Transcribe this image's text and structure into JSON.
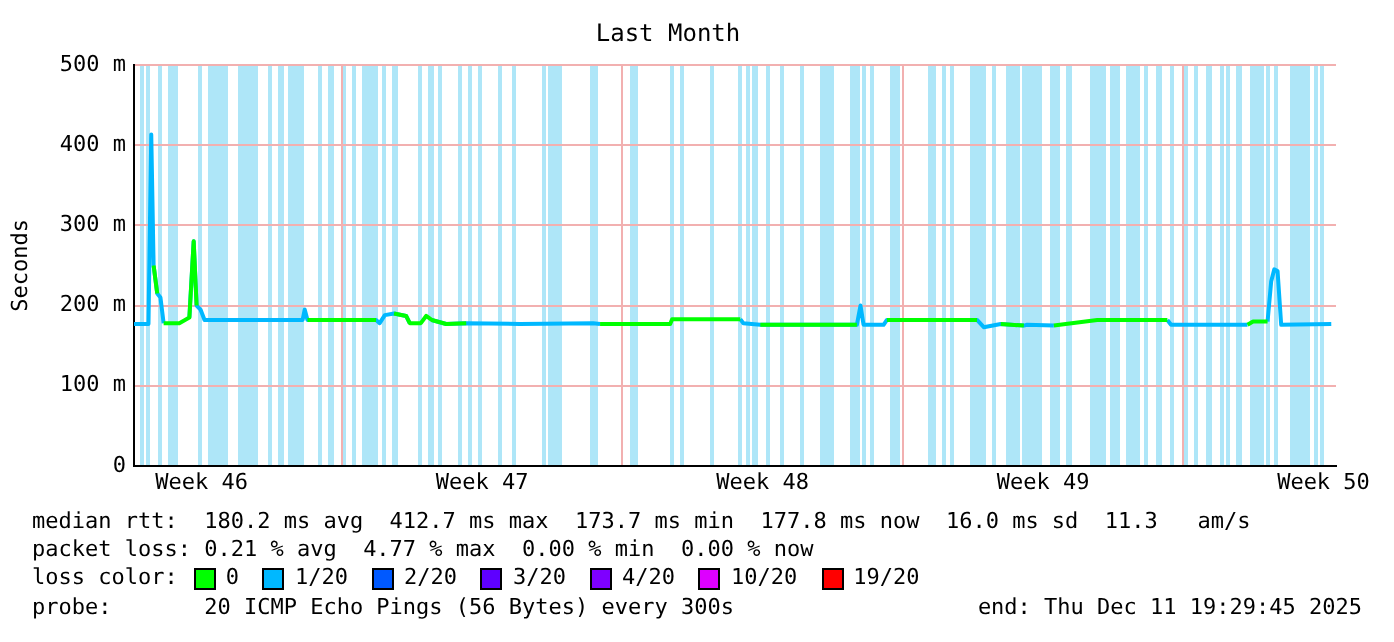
{
  "chart_data": {
    "type": "line",
    "title": "Last Month",
    "ylabel": "Seconds",
    "legend_title": "loss color:",
    "legend": "bottom",
    "marker": "none",
    "grid": true,
    "x": [
      "2025-11-11T19:30",
      "2025-11-12T04:10",
      "2025-11-12T05:50",
      "2025-11-12T07:15",
      "2025-11-12T09:25",
      "2025-11-12T11:20",
      "2025-11-12T13:15",
      "2025-11-12T22:40",
      "2025-11-13T04:40",
      "2025-11-13T07:15",
      "2025-11-13T09:00",
      "2025-11-13T11:20",
      "2025-11-13T13:45",
      "2025-11-16T00:30",
      "2025-11-16T01:45",
      "2025-11-16T03:25",
      "2025-11-17T20:30",
      "2025-11-17T22:40",
      "2025-11-18T01:45",
      "2025-11-18T07:15",
      "2025-11-18T14:30",
      "2025-11-18T16:40",
      "2025-11-18T23:20",
      "2025-11-19T02:30",
      "2025-11-19T05:50",
      "2025-11-19T14:30",
      "2025-11-20T02:30",
      "2025-11-21T10:40",
      "2025-11-23T06:30",
      "2025-11-23T10:40",
      "2025-11-25T04:40",
      "2025-11-25T05:50",
      "2025-11-25T10:40",
      "2025-11-26T22:40",
      "2025-11-27T00:30",
      "2025-11-27T10:40",
      "2025-11-29T20:30",
      "2025-11-29T22:40",
      "2025-11-30T00:30",
      "2025-11-30T12:30",
      "2025-11-30T14:30",
      "2025-12-02T20:30",
      "2025-12-03T00:30",
      "2025-12-03T10:40",
      "2025-12-04T00:30",
      "2025-12-04T02:30",
      "2025-12-04T18:30",
      "2025-12-05T20:30",
      "2025-12-07T14:30",
      "2025-12-07T16:40",
      "2025-12-09T14:30",
      "2025-12-09T17:50",
      "2025-12-10T02:30",
      "2025-12-10T04:40",
      "2025-12-10T06:30",
      "2025-12-10T08:30",
      "2025-12-10T10:40",
      "2025-12-11T16:40"
    ],
    "xlim": [
      "2025-11-11T19:30",
      "2025-12-11T19:30"
    ],
    "xticks": [
      {
        "value": "2025-11-13T12:00",
        "label": "Week 46"
      },
      {
        "value": "2025-11-17T00:00",
        "label": null
      },
      {
        "value": "2025-11-20T12:00",
        "label": "Week 47"
      },
      {
        "value": "2025-11-24T00:00",
        "label": null
      },
      {
        "value": "2025-11-27T12:00",
        "label": "Week 48"
      },
      {
        "value": "2025-12-01T00:00",
        "label": null
      },
      {
        "value": "2025-12-04T12:00",
        "label": "Week 49"
      },
      {
        "value": "2025-12-08T00:00",
        "label": null
      },
      {
        "value": "2025-12-11T12:00",
        "label": "Week 50"
      }
    ],
    "ylim": [
      0,
      500
    ],
    "yticks": [
      0,
      {
        "value": 100,
        "label": "100 m"
      },
      {
        "value": 200,
        "label": "200 m"
      },
      {
        "value": 300,
        "label": "300 m"
      },
      {
        "value": 400,
        "label": "400 m"
      },
      {
        "value": 500,
        "label": "500 m"
      }
    ],
    "series": [
      {
        "name": "0",
        "color": "#00ff00",
        "values": [
          null,
          null,
          null,
          250,
          215,
          null,
          178,
          178,
          185,
          280,
          200,
          null,
          null,
          null,
          null,
          182,
          182,
          null,
          null,
          190,
          187,
          178,
          178,
          187,
          182,
          177,
          178,
          null,
          null,
          177,
          177,
          183,
          183,
          183,
          null,
          176,
          176,
          null,
          null,
          null,
          182,
          182,
          null,
          177,
          175,
          null,
          175,
          182,
          182,
          null,
          176,
          180,
          180,
          null,
          null,
          null,
          null,
          null
        ]
      },
      {
        "name": "1/20",
        "color": "#00b8ff",
        "values": [
          177,
          177,
          413,
          250,
          215,
          210,
          178,
          null,
          185,
          280,
          200,
          195,
          182,
          182,
          195,
          182,
          182,
          178,
          188,
          190,
          187,
          178,
          null,
          null,
          182,
          177,
          178,
          177,
          178,
          177,
          null,
          null,
          null,
          183,
          178,
          176,
          176,
          200,
          176,
          176,
          182,
          182,
          173,
          177,
          175,
          176,
          175,
          null,
          182,
          176,
          176,
          null,
          180,
          230,
          245,
          243,
          176,
          177
        ]
      },
      {
        "name": "2/20",
        "color": "#0059ff",
        "values": [
          null,
          null,
          null,
          null,
          null,
          null,
          null,
          null,
          null,
          null,
          null,
          null,
          null,
          null,
          null,
          null,
          null,
          null,
          null,
          null,
          null,
          null,
          null,
          null,
          null,
          null,
          null,
          null,
          null,
          null,
          null,
          null,
          null,
          null,
          null,
          null,
          null,
          null,
          null,
          null,
          null,
          null,
          null,
          null,
          null,
          null,
          null,
          null,
          null,
          null,
          null,
          null,
          null,
          null,
          null,
          null,
          null,
          null
        ]
      },
      {
        "name": "3/20",
        "color": "#5e00ff",
        "values": [
          null,
          null,
          null,
          null,
          null,
          null,
          null,
          null,
          null,
          null,
          null,
          null,
          null,
          null,
          null,
          null,
          null,
          null,
          null,
          null,
          null,
          null,
          null,
          null,
          null,
          null,
          null,
          null,
          null,
          null,
          null,
          null,
          null,
          null,
          null,
          null,
          null,
          null,
          null,
          null,
          null,
          null,
          null,
          null,
          null,
          null,
          null,
          null,
          null,
          null,
          null,
          null,
          null,
          null,
          null,
          null,
          null,
          null
        ]
      },
      {
        "name": "4/20",
        "color": "#7e00ff",
        "values": [
          null,
          null,
          null,
          null,
          null,
          null,
          null,
          null,
          null,
          null,
          null,
          null,
          null,
          null,
          null,
          null,
          null,
          null,
          null,
          null,
          null,
          null,
          null,
          null,
          null,
          null,
          null,
          null,
          null,
          null,
          null,
          null,
          null,
          null,
          null,
          null,
          null,
          null,
          null,
          null,
          null,
          null,
          null,
          null,
          null,
          null,
          null,
          null,
          null,
          null,
          null,
          null,
          null,
          null,
          null,
          null,
          null,
          null
        ]
      },
      {
        "name": "10/20",
        "color": "#dd00ff",
        "values": [
          null,
          null,
          null,
          null,
          null,
          null,
          null,
          null,
          null,
          null,
          null,
          null,
          null,
          null,
          null,
          null,
          null,
          null,
          null,
          null,
          null,
          null,
          null,
          null,
          null,
          null,
          null,
          null,
          null,
          null,
          null,
          null,
          null,
          null,
          null,
          null,
          null,
          null,
          null,
          null,
          null,
          null,
          null,
          null,
          null,
          null,
          null,
          null,
          null,
          null,
          null,
          null,
          null,
          null,
          null,
          null,
          null,
          null
        ]
      },
      {
        "name": "19/20",
        "color": "#ff0000",
        "values": [
          null,
          null,
          null,
          null,
          null,
          null,
          null,
          null,
          null,
          null,
          null,
          null,
          null,
          null,
          null,
          null,
          null,
          null,
          null,
          null,
          null,
          null,
          null,
          null,
          null,
          null,
          null,
          null,
          null,
          null,
          null,
          null,
          null,
          null,
          null,
          null,
          null,
          null,
          null,
          null,
          null,
          null,
          null,
          null,
          null,
          null,
          null,
          null,
          null,
          null,
          null,
          null,
          null,
          null,
          null,
          null,
          null,
          null
        ]
      }
    ],
    "bands": [
      {
        "axis": "x",
        "from": "2025-11-11T23:20",
        "to": "2025-11-12T01:45",
        "color": "#aee6f8"
      },
      {
        "axis": "x",
        "from": "2025-11-12T03:25",
        "to": "2025-11-12T05:50",
        "color": "#aee6f8"
      },
      {
        "axis": "x",
        "from": "2025-11-12T10:40",
        "to": "2025-11-12T12:30",
        "color": "#aee6f8"
      },
      {
        "axis": "x",
        "from": "2025-11-12T16:40",
        "to": "2025-11-12T22:40",
        "color": "#aee6f8"
      },
      {
        "axis": "x",
        "from": "2025-11-13T10:40",
        "to": "2025-11-13T12:30",
        "color": "#aee6f8"
      },
      {
        "axis": "x",
        "from": "2025-11-13T16:40",
        "to": "2025-11-14T04:40",
        "color": "#aee6f8"
      },
      {
        "axis": "x",
        "from": "2025-11-14T10:40",
        "to": "2025-11-14T22:40",
        "color": "#aee6f8"
      },
      {
        "axis": "x",
        "from": "2025-11-15T04:40",
        "to": "2025-11-15T06:30",
        "color": "#aee6f8"
      },
      {
        "axis": "x",
        "from": "2025-11-15T10:40",
        "to": "2025-11-15T14:30",
        "color": "#aee6f8"
      },
      {
        "axis": "x",
        "from": "2025-11-15T16:40",
        "to": "2025-11-16T02:15",
        "color": "#aee6f8"
      },
      {
        "axis": "x",
        "from": "2025-11-16T10:40",
        "to": "2025-11-16T13:00",
        "color": "#aee6f8"
      },
      {
        "axis": "x",
        "from": "2025-11-16T16:40",
        "to": "2025-11-16T20:15",
        "color": "#aee6f8"
      },
      {
        "axis": "x",
        "from": "2025-11-17T01:00",
        "to": "2025-11-17T02:15",
        "color": "#aee6f8"
      },
      {
        "axis": "x",
        "from": "2025-11-17T07:00",
        "to": "2025-11-17T08:15",
        "color": "#aee6f8"
      },
      {
        "axis": "x",
        "from": "2025-11-17T13:00",
        "to": "2025-11-17T22:40",
        "color": "#aee6f8"
      },
      {
        "axis": "x",
        "from": "2025-11-18T01:00",
        "to": "2025-11-18T02:15",
        "color": "#aee6f8"
      },
      {
        "axis": "x",
        "from": "2025-11-18T07:00",
        "to": "2025-11-18T10:40",
        "color": "#aee6f8"
      },
      {
        "axis": "x",
        "from": "2025-11-18T22:40",
        "to": "2025-11-19T01:00",
        "color": "#aee6f8"
      },
      {
        "axis": "x",
        "from": "2025-11-19T04:40",
        "to": "2025-11-19T08:15",
        "color": "#aee6f8"
      },
      {
        "axis": "x",
        "from": "2025-11-19T10:40",
        "to": "2025-11-19T13:00",
        "color": "#aee6f8"
      },
      {
        "axis": "x",
        "from": "2025-11-19T22:40",
        "to": "2025-11-20T01:00",
        "color": "#aee6f8"
      },
      {
        "axis": "x",
        "from": "2025-11-20T04:40",
        "to": "2025-11-20T07:00",
        "color": "#aee6f8"
      },
      {
        "axis": "x",
        "from": "2025-11-20T10:40",
        "to": "2025-11-20T13:00",
        "color": "#aee6f8"
      },
      {
        "axis": "x",
        "from": "2025-11-20T22:40",
        "to": "2025-11-21T01:00",
        "color": "#aee6f8"
      },
      {
        "axis": "x",
        "from": "2025-11-21T07:00",
        "to": "2025-11-21T08:15",
        "color": "#aee6f8"
      },
      {
        "axis": "x",
        "from": "2025-11-22T01:00",
        "to": "2025-11-22T02:15",
        "color": "#aee6f8"
      },
      {
        "axis": "x",
        "from": "2025-11-22T04:40",
        "to": "2025-11-22T13:00",
        "color": "#aee6f8"
      },
      {
        "axis": "x",
        "from": "2025-11-23T04:40",
        "to": "2025-11-23T09:25",
        "color": "#aee6f8"
      },
      {
        "axis": "x",
        "from": "2025-11-24T04:40",
        "to": "2025-11-24T09:25",
        "color": "#aee6f8"
      },
      {
        "axis": "x",
        "from": "2025-11-25T04:40",
        "to": "2025-11-25T07:00",
        "color": "#aee6f8"
      },
      {
        "axis": "x",
        "from": "2025-11-25T10:40",
        "to": "2025-11-25T13:00",
        "color": "#aee6f8"
      },
      {
        "axis": "x",
        "from": "2025-11-26T04:40",
        "to": "2025-11-26T06:30",
        "color": "#aee6f8"
      },
      {
        "axis": "x",
        "from": "2025-11-26T21:40",
        "to": "2025-11-27T00:30",
        "color": "#aee6f8"
      },
      {
        "axis": "x",
        "from": "2025-11-27T02:30",
        "to": "2025-11-27T04:40",
        "color": "#aee6f8"
      },
      {
        "axis": "x",
        "from": "2025-11-27T06:30",
        "to": "2025-11-27T09:40",
        "color": "#aee6f8"
      },
      {
        "axis": "x",
        "from": "2025-11-27T14:30",
        "to": "2025-11-27T16:40",
        "color": "#aee6f8"
      },
      {
        "axis": "x",
        "from": "2025-11-27T22:40",
        "to": "2025-11-28T00:30",
        "color": "#aee6f8"
      },
      {
        "axis": "x",
        "from": "2025-11-28T10:40",
        "to": "2025-11-28T13:15",
        "color": "#aee6f8"
      },
      {
        "axis": "x",
        "from": "2025-11-28T22:40",
        "to": "2025-11-29T06:30",
        "color": "#aee6f8"
      },
      {
        "axis": "x",
        "from": "2025-11-29T16:40",
        "to": "2025-11-29T22:40",
        "color": "#aee6f8"
      },
      {
        "axis": "x",
        "from": "2025-11-30T00:30",
        "to": "2025-11-30T02:30",
        "color": "#aee6f8"
      },
      {
        "axis": "x",
        "from": "2025-11-30T04:40",
        "to": "2025-11-30T06:30",
        "color": "#aee6f8"
      },
      {
        "axis": "x",
        "from": "2025-11-30T16:40",
        "to": "2025-11-30T22:40",
        "color": "#aee6f8"
      },
      {
        "axis": "x",
        "from": "2025-12-01T15:25",
        "to": "2025-12-01T20:30",
        "color": "#aee6f8"
      },
      {
        "axis": "x",
        "from": "2025-12-02T00:30",
        "to": "2025-12-02T02:30",
        "color": "#aee6f8"
      },
      {
        "axis": "x",
        "from": "2025-12-02T04:40",
        "to": "2025-12-02T06:30",
        "color": "#aee6f8"
      },
      {
        "axis": "x",
        "from": "2025-12-02T16:40",
        "to": "2025-12-03T02:30",
        "color": "#aee6f8"
      },
      {
        "axis": "x",
        "from": "2025-12-03T06:30",
        "to": "2025-12-03T08:30",
        "color": "#aee6f8"
      },
      {
        "axis": "x",
        "from": "2025-12-03T14:30",
        "to": "2025-12-03T22:40",
        "color": "#aee6f8"
      },
      {
        "axis": "x",
        "from": "2025-12-04T00:30",
        "to": "2025-12-04T12:30",
        "color": "#aee6f8"
      },
      {
        "axis": "x",
        "from": "2025-12-04T16:40",
        "to": "2025-12-04T22:40",
        "color": "#aee6f8"
      },
      {
        "axis": "x",
        "from": "2025-12-05T02:30",
        "to": "2025-12-05T06:30",
        "color": "#aee6f8"
      },
      {
        "axis": "x",
        "from": "2025-12-05T16:40",
        "to": "2025-12-06T02:30",
        "color": "#aee6f8"
      },
      {
        "axis": "x",
        "from": "2025-12-06T04:40",
        "to": "2025-12-06T10:40",
        "color": "#aee6f8"
      },
      {
        "axis": "x",
        "from": "2025-12-06T14:30",
        "to": "2025-12-06T22:40",
        "color": "#aee6f8"
      },
      {
        "axis": "x",
        "from": "2025-12-07T00:30",
        "to": "2025-12-07T02:30",
        "color": "#aee6f8"
      },
      {
        "axis": "x",
        "from": "2025-12-07T08:30",
        "to": "2025-12-07T12:30",
        "color": "#aee6f8"
      },
      {
        "axis": "x",
        "from": "2025-12-07T16:40",
        "to": "2025-12-07T18:30",
        "color": "#aee6f8"
      },
      {
        "axis": "x",
        "from": "2025-12-08T00:30",
        "to": "2025-12-08T02:30",
        "color": "#aee6f8"
      },
      {
        "axis": "x",
        "from": "2025-12-08T06:30",
        "to": "2025-12-08T08:30",
        "color": "#aee6f8"
      },
      {
        "axis": "x",
        "from": "2025-12-08T14:30",
        "to": "2025-12-08T18:30",
        "color": "#aee6f8"
      },
      {
        "axis": "x",
        "from": "2025-12-08T22:40",
        "to": "2025-12-09T00:30",
        "color": "#aee6f8"
      },
      {
        "axis": "x",
        "from": "2025-12-09T02:30",
        "to": "2025-12-09T04:40",
        "color": "#aee6f8"
      },
      {
        "axis": "x",
        "from": "2025-12-09T08:30",
        "to": "2025-12-09T12:30",
        "color": "#aee6f8"
      },
      {
        "axis": "x",
        "from": "2025-12-09T16:40",
        "to": "2025-12-10T00:30",
        "color": "#aee6f8"
      },
      {
        "axis": "x",
        "from": "2025-12-10T02:30",
        "to": "2025-12-10T04:40",
        "color": "#aee6f8"
      },
      {
        "axis": "x",
        "from": "2025-12-10T06:30",
        "to": "2025-12-10T08:30",
        "color": "#aee6f8"
      },
      {
        "axis": "x",
        "from": "2025-12-10T16:40",
        "to": "2025-12-11T04:40",
        "color": "#aee6f8"
      },
      {
        "axis": "x",
        "from": "2025-12-11T06:30",
        "to": "2025-12-11T08:30",
        "color": "#aee6f8"
      },
      {
        "axis": "x",
        "from": "2025-12-11T10:40",
        "to": "2025-12-11T12:30",
        "color": "#aee6f8"
      }
    ],
    "annotations": [
      "median rtt:  180.2 ms avg  412.7 ms max  173.7 ms min  177.8 ms now  16.0 ms sd  11.3   am/s",
      "packet loss: 0.21 % avg  4.77 % max  0.00 % min  0.00 % now",
      "probe:       20 ICMP Echo Pings (56 Bytes) every 300s",
      "end: Thu Dec 11 19:29:45 2025"
    ]
  }
}
